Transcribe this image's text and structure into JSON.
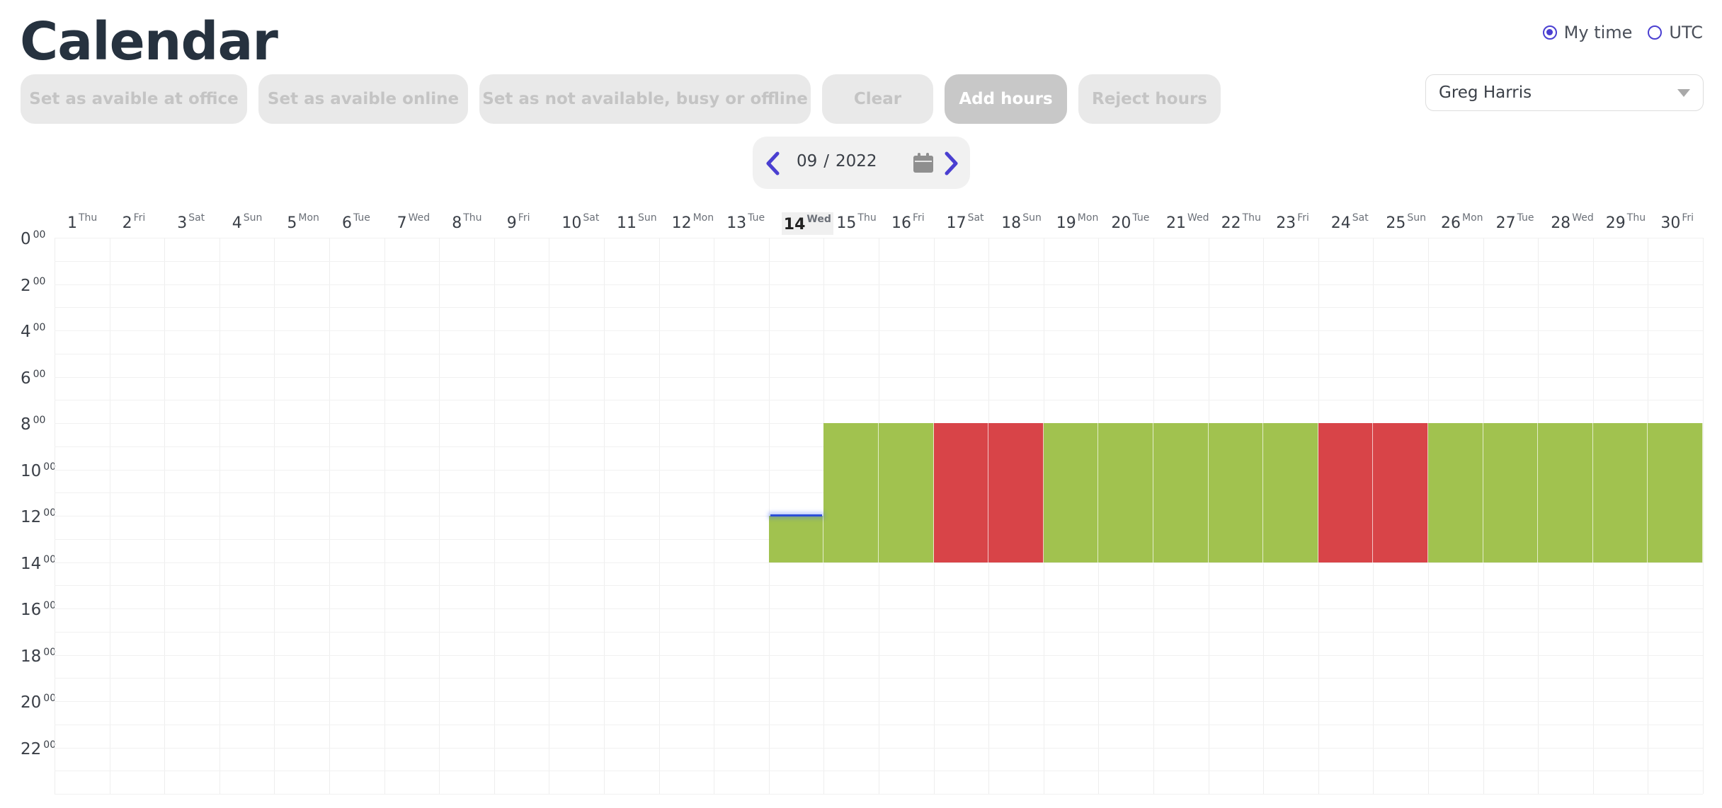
{
  "title": "Calendar",
  "radios": [
    {
      "label": "My time",
      "checked": true
    },
    {
      "label": "UTC",
      "checked": false
    }
  ],
  "buttons": [
    {
      "label": "Set as avaible at office",
      "active": false
    },
    {
      "label": "Set as avaible online",
      "active": false
    },
    {
      "label": "Set as not available, busy or offline",
      "active": false
    },
    {
      "label": "Clear",
      "active": false
    },
    {
      "label": "Add hours",
      "active": true
    },
    {
      "label": "Reject hours",
      "active": false
    }
  ],
  "user_select": {
    "selected": "Greg Harris"
  },
  "month_nav": {
    "month": "09",
    "separator": "/",
    "year": "2022"
  },
  "colors": {
    "available": "#a1c24f",
    "unavailable": "#d84448",
    "accent": "#4a3fd1",
    "now_line": "#2d4fd6"
  },
  "icons": [
    "chevron-left-icon",
    "chevron-right-icon",
    "calendar-icon",
    "chevron-down-icon"
  ],
  "days": [
    {
      "n": "1",
      "w": "Thu"
    },
    {
      "n": "2",
      "w": "Fri"
    },
    {
      "n": "3",
      "w": "Sat"
    },
    {
      "n": "4",
      "w": "Sun"
    },
    {
      "n": "5",
      "w": "Mon"
    },
    {
      "n": "6",
      "w": "Tue"
    },
    {
      "n": "7",
      "w": "Wed"
    },
    {
      "n": "8",
      "w": "Thu"
    },
    {
      "n": "9",
      "w": "Fri"
    },
    {
      "n": "10",
      "w": "Sat"
    },
    {
      "n": "11",
      "w": "Sun"
    },
    {
      "n": "12",
      "w": "Mon"
    },
    {
      "n": "13",
      "w": "Tue"
    },
    {
      "n": "14",
      "w": "Wed",
      "today": true
    },
    {
      "n": "15",
      "w": "Thu"
    },
    {
      "n": "16",
      "w": "Fri"
    },
    {
      "n": "17",
      "w": "Sat"
    },
    {
      "n": "18",
      "w": "Sun"
    },
    {
      "n": "19",
      "w": "Mon"
    },
    {
      "n": "20",
      "w": "Tue"
    },
    {
      "n": "21",
      "w": "Wed"
    },
    {
      "n": "22",
      "w": "Thu"
    },
    {
      "n": "23",
      "w": "Fri"
    },
    {
      "n": "24",
      "w": "Sat"
    },
    {
      "n": "25",
      "w": "Sun"
    },
    {
      "n": "26",
      "w": "Mon"
    },
    {
      "n": "27",
      "w": "Tue"
    },
    {
      "n": "28",
      "w": "Wed"
    },
    {
      "n": "29",
      "w": "Thu"
    },
    {
      "n": "30",
      "w": "Fri"
    }
  ],
  "hours": [
    "0",
    "2",
    "4",
    "6",
    "8",
    "10",
    "12",
    "14",
    "16",
    "18",
    "20",
    "22"
  ],
  "hour_suffix": "00",
  "availability": [
    {
      "day": 14,
      "start_hour": 12,
      "end_hour": 14,
      "status": "available"
    },
    {
      "day": 15,
      "start_hour": 8,
      "end_hour": 14,
      "status": "available"
    },
    {
      "day": 16,
      "start_hour": 8,
      "end_hour": 14,
      "status": "available"
    },
    {
      "day": 17,
      "start_hour": 8,
      "end_hour": 14,
      "status": "unavailable"
    },
    {
      "day": 18,
      "start_hour": 8,
      "end_hour": 14,
      "status": "unavailable"
    },
    {
      "day": 19,
      "start_hour": 8,
      "end_hour": 14,
      "status": "available"
    },
    {
      "day": 20,
      "start_hour": 8,
      "end_hour": 14,
      "status": "available"
    },
    {
      "day": 21,
      "start_hour": 8,
      "end_hour": 14,
      "status": "available"
    },
    {
      "day": 22,
      "start_hour": 8,
      "end_hour": 14,
      "status": "available"
    },
    {
      "day": 23,
      "start_hour": 8,
      "end_hour": 14,
      "status": "available"
    },
    {
      "day": 24,
      "start_hour": 8,
      "end_hour": 14,
      "status": "unavailable"
    },
    {
      "day": 25,
      "start_hour": 8,
      "end_hour": 14,
      "status": "unavailable"
    },
    {
      "day": 26,
      "start_hour": 8,
      "end_hour": 14,
      "status": "available"
    },
    {
      "day": 27,
      "start_hour": 8,
      "end_hour": 14,
      "status": "available"
    },
    {
      "day": 28,
      "start_hour": 8,
      "end_hour": 14,
      "status": "available"
    },
    {
      "day": 29,
      "start_hour": 8,
      "end_hour": 14,
      "status": "available"
    },
    {
      "day": 30,
      "start_hour": 8,
      "end_hour": 14,
      "status": "available"
    }
  ],
  "current_time": {
    "day": 14,
    "hour": 12
  }
}
